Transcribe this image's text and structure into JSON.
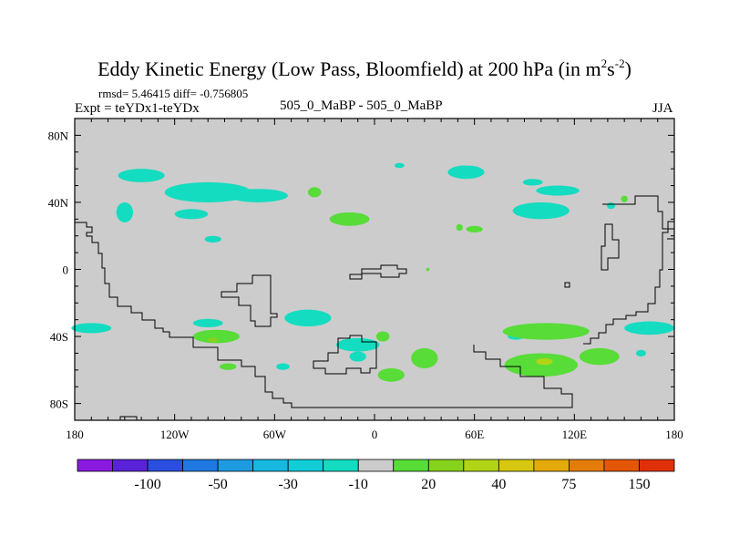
{
  "header": {
    "title_main": "Eddy Kinetic Energy (Low Pass, Bloomfield) at 200 hPa (in m",
    "title_sup1": "2",
    "title_mid": "s",
    "title_sup2": "-2",
    "title_end": ")",
    "stats": "rmsd= 5.46415 diff= -0.756805",
    "expt": "Expt = teYDx1-teYDx",
    "subtitle": "505_0_MaBP - 505_0_MaBP",
    "season": "JJA"
  },
  "chart_data": {
    "type": "heatmap",
    "title": "Eddy Kinetic Energy (Low Pass, Bloomfield) at 200 hPa (in m^2 s^-2)",
    "subtitle": "505_0_MaBP - 505_0_MaBP",
    "season": "JJA",
    "xlim": [
      -180,
      180
    ],
    "ylim": [
      -90,
      90
    ],
    "x_ticks": [
      -180,
      -120,
      -60,
      0,
      60,
      120,
      180
    ],
    "x_tick_labels": [
      "180",
      "120W",
      "60W",
      "0",
      "60E",
      "120E",
      "180"
    ],
    "y_ticks": [
      80,
      40,
      0,
      -40,
      -80
    ],
    "y_tick_labels": [
      "80N",
      "40N",
      "0",
      "40S",
      "80S"
    ],
    "background_value_bin": "-10 to 10",
    "regions": [
      {
        "lon": -140,
        "lat": 56,
        "rx": 14,
        "ry": 4,
        "bin": "-20 to -10"
      },
      {
        "lon": -100,
        "lat": 46,
        "rx": 26,
        "ry": 6,
        "bin": "-20 to -10"
      },
      {
        "lon": -70,
        "lat": 44,
        "rx": 18,
        "ry": 4,
        "bin": "-20 to -10"
      },
      {
        "lon": -150,
        "lat": 34,
        "rx": 5,
        "ry": 6,
        "bin": "-20 to -10"
      },
      {
        "lon": -110,
        "lat": 33,
        "rx": 10,
        "ry": 3,
        "bin": "-20 to -10"
      },
      {
        "lon": -97,
        "lat": 18,
        "rx": 5,
        "ry": 2,
        "bin": "-20 to -10"
      },
      {
        "lon": 15,
        "lat": 62,
        "rx": 3,
        "ry": 1.5,
        "bin": "-20 to -10"
      },
      {
        "lon": 55,
        "lat": 58,
        "rx": 11,
        "ry": 4,
        "bin": "-20 to -10"
      },
      {
        "lon": 95,
        "lat": 52,
        "rx": 6,
        "ry": 2,
        "bin": "-20 to -10"
      },
      {
        "lon": 110,
        "lat": 47,
        "rx": 13,
        "ry": 3,
        "bin": "-20 to -10"
      },
      {
        "lon": 100,
        "lat": 35,
        "rx": 17,
        "ry": 5,
        "bin": "-20 to -10"
      },
      {
        "lon": 142,
        "lat": 38,
        "rx": 2.5,
        "ry": 2,
        "bin": "-20 to -10"
      },
      {
        "lon": -170,
        "lat": -35,
        "rx": 12,
        "ry": 3,
        "bin": "-20 to -10"
      },
      {
        "lon": -100,
        "lat": -32,
        "rx": 9,
        "ry": 2.5,
        "bin": "-20 to -10"
      },
      {
        "lon": -40,
        "lat": -29,
        "rx": 14,
        "ry": 5,
        "bin": "-20 to -10"
      },
      {
        "lon": -55,
        "lat": -58,
        "rx": 4,
        "ry": 2,
        "bin": "-20 to -10"
      },
      {
        "lon": -10,
        "lat": -45,
        "rx": 13,
        "ry": 4,
        "bin": "-20 to -10"
      },
      {
        "lon": -10,
        "lat": -52,
        "rx": 5,
        "ry": 3,
        "bin": "-20 to -10"
      },
      {
        "lon": 85,
        "lat": -40,
        "rx": 5,
        "ry": 2,
        "bin": "-20 to -10"
      },
      {
        "lon": 165,
        "lat": -35,
        "rx": 15,
        "ry": 4,
        "bin": "-20 to -10"
      },
      {
        "lon": 160,
        "lat": -50,
        "rx": 3,
        "ry": 2,
        "bin": "-20 to -10"
      },
      {
        "lon": -36,
        "lat": 46,
        "rx": 4,
        "ry": 3,
        "bin": "10 to 20"
      },
      {
        "lon": -15,
        "lat": 30,
        "rx": 12,
        "ry": 4,
        "bin": "10 to 20"
      },
      {
        "lon": 60,
        "lat": 24,
        "rx": 5,
        "ry": 2,
        "bin": "10 to 20"
      },
      {
        "lon": 51,
        "lat": 25,
        "rx": 2,
        "ry": 2,
        "bin": "10 to 20"
      },
      {
        "lon": 32,
        "lat": 0,
        "rx": 1,
        "ry": 1,
        "bin": "10 to 20"
      },
      {
        "lon": 150,
        "lat": 42,
        "rx": 2,
        "ry": 2,
        "bin": "10 to 20"
      },
      {
        "lon": -95,
        "lat": -40,
        "rx": 14,
        "ry": 4,
        "bin": "10 to 20"
      },
      {
        "lon": 5,
        "lat": -40,
        "rx": 4,
        "ry": 3,
        "bin": "10 to 20"
      },
      {
        "lon": 30,
        "lat": -53,
        "rx": 8,
        "ry": 6,
        "bin": "10 to 20"
      },
      {
        "lon": 10,
        "lat": -63,
        "rx": 8,
        "ry": 4,
        "bin": "10 to 20"
      },
      {
        "lon": -88,
        "lat": -58,
        "rx": 5,
        "ry": 2,
        "bin": "10 to 20"
      },
      {
        "lon": 103,
        "lat": -37,
        "rx": 26,
        "ry": 5,
        "bin": "10 to 20"
      },
      {
        "lon": 100,
        "lat": -57,
        "rx": 22,
        "ry": 7,
        "bin": "10 to 20"
      },
      {
        "lon": 135,
        "lat": -52,
        "rx": 12,
        "ry": 5,
        "bin": "10 to 20"
      },
      {
        "lon": -97,
        "lat": -42,
        "rx": 3,
        "ry": 1.5,
        "bin": "20 to 30"
      },
      {
        "lon": 102,
        "lat": -55,
        "rx": 5,
        "ry": 2,
        "bin": "30 to 40"
      }
    ],
    "colorbar": {
      "bins": [
        "<-150",
        "-150 to -100",
        "-100 to -75",
        "-75 to -50",
        "-50 to -40",
        "-40 to -30",
        "-30 to -20",
        "-20 to -10",
        "-10 to 10",
        "10 to 20",
        "20 to 30",
        "30 to 40",
        "40 to 50",
        "50 to 75",
        "75 to 100",
        "100 to 150",
        ">150"
      ],
      "colors": [
        "#8a1ae0",
        "#5a22d8",
        "#2a4fe0",
        "#1f78e0",
        "#1e9be0",
        "#16b8e0",
        "#12ccd8",
        "#14dcc0",
        "#cccccc",
        "#58dc38",
        "#86d21c",
        "#b2d416",
        "#d6c810",
        "#e4aa0c",
        "#e47c0a",
        "#e45608",
        "#e0300a"
      ],
      "labels": [
        "-100",
        "-50",
        "-30",
        "-10",
        "20",
        "40",
        "75",
        "150"
      ],
      "label_after_bin_index": [
        1,
        3,
        5,
        7,
        9,
        11,
        13,
        15
      ]
    },
    "region_colors": {
      "-20 to -10": "#14dcc0",
      "10 to 20": "#58dc38",
      "20 to 30": "#86d21c",
      "30 to 40": "#b2d416"
    },
    "plot_background": "#cccccc"
  }
}
